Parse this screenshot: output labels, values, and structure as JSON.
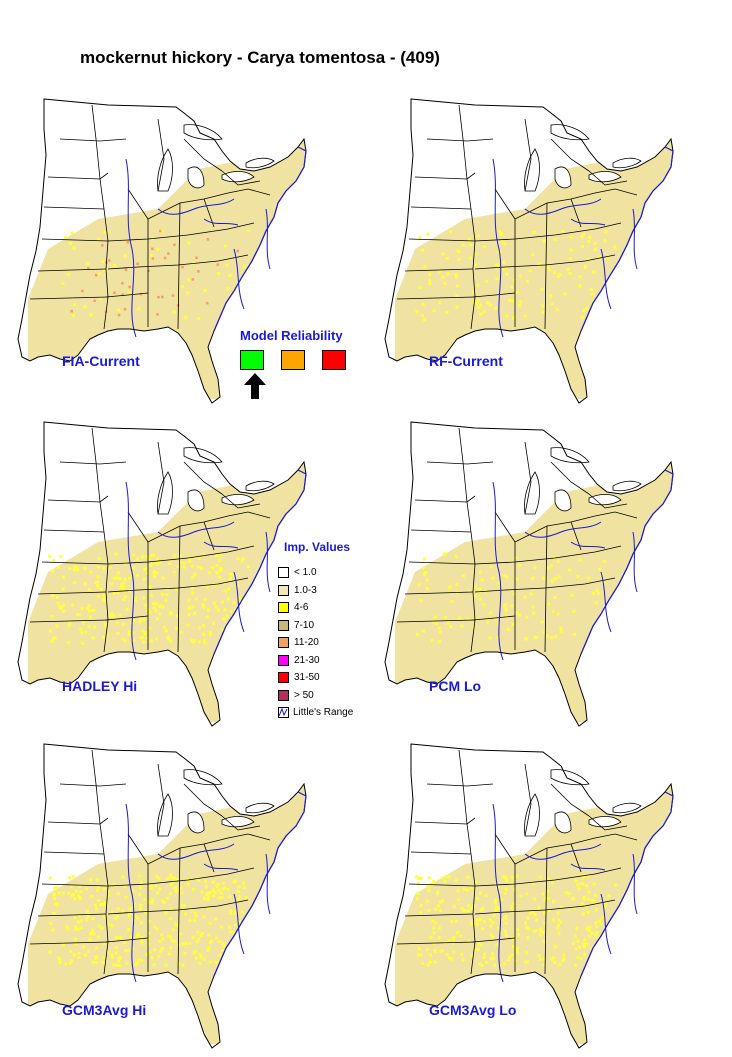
{
  "title": "mockernut hickory - Carya tomentosa - (409)",
  "maps": [
    {
      "label": "FIA-Current",
      "fill": "#f0e2a0",
      "yellow": 0.02,
      "orange": true
    },
    {
      "label": "RF-Current",
      "fill": "#f0e2a0",
      "yellow": 0.06,
      "orange": false
    },
    {
      "label": "HADLEY Hi",
      "fill": "#f0e2a0",
      "yellow": 0.12,
      "orange": false
    },
    {
      "label": "PCM Lo",
      "fill": "#f0e2a0",
      "yellow": 0.05,
      "orange": false
    },
    {
      "label": "GCM3Avg Hi",
      "fill": "#f0e2a0",
      "yellow": 0.14,
      "orange": false
    },
    {
      "label": "GCM3Avg Lo",
      "fill": "#f0e2a0",
      "yellow": 0.12,
      "orange": false
    }
  ],
  "reliability": {
    "title": "Model Reliability",
    "colors": [
      "#00ff00",
      "#ffa500",
      "#ff0000"
    ],
    "selected_index": 0
  },
  "legend": {
    "title": "Imp. Values",
    "items": [
      {
        "label": "< 1.0",
        "color": "#ffffff"
      },
      {
        "label": "1.0-3",
        "color": "#f5e8b8"
      },
      {
        "label": "4-6",
        "color": "#ffff00"
      },
      {
        "label": "7-10",
        "color": "#c8b878"
      },
      {
        "label": "11-20",
        "color": "#f0a060"
      },
      {
        "label": "21-30",
        "color": "#ff00ff"
      },
      {
        "label": "31-50",
        "color": "#ff0000"
      },
      {
        "label": "> 50",
        "color": "#b03060"
      }
    ],
    "range_label": "Little's Range",
    "range_color": "#1a1ad6"
  }
}
